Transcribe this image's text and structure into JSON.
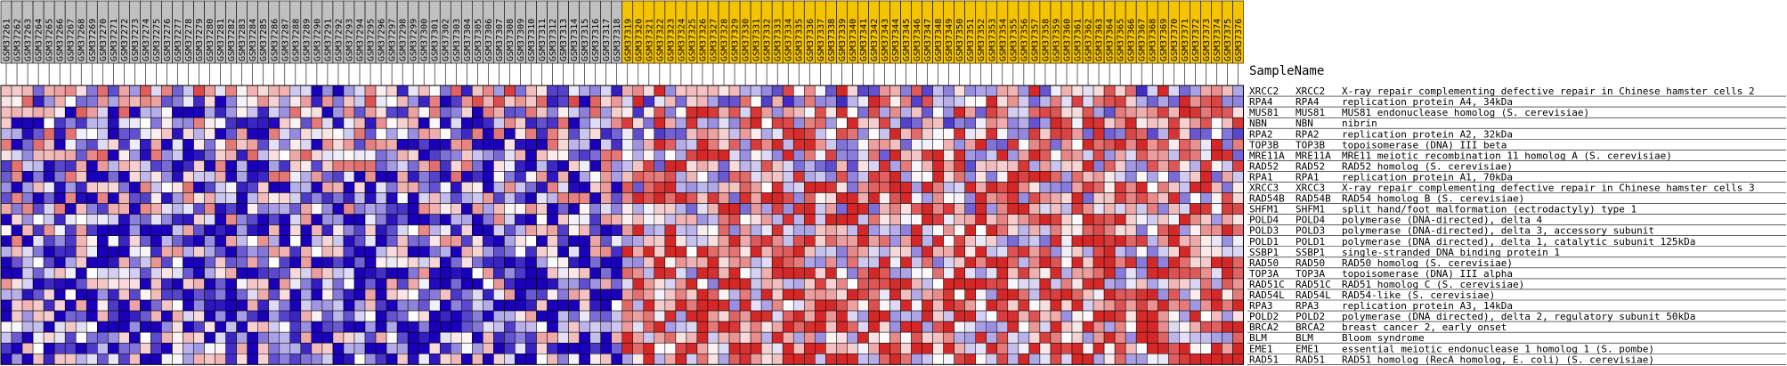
{
  "chart_data": {
    "type": "heatmap",
    "column_header_label": "SampleName",
    "columns": [
      "GSM37261",
      "GSM37262",
      "GSM37263",
      "GSM37264",
      "GSM37265",
      "GSM37266",
      "GSM37267",
      "GSM37268",
      "GSM37269",
      "GSM37270",
      "GSM37271",
      "GSM37272",
      "GSM37273",
      "GSM37274",
      "GSM37275",
      "GSM37276",
      "GSM37277",
      "GSM37278",
      "GSM37279",
      "GSM37280",
      "GSM37281",
      "GSM37282",
      "GSM37283",
      "GSM37284",
      "GSM37285",
      "GSM37286",
      "GSM37287",
      "GSM37288",
      "GSM37289",
      "GSM37290",
      "GSM37291",
      "GSM37292",
      "GSM37293",
      "GSM37294",
      "GSM37295",
      "GSM37296",
      "GSM37297",
      "GSM37298",
      "GSM37299",
      "GSM37300",
      "GSM37301",
      "GSM37302",
      "GSM37303",
      "GSM37304",
      "GSM37305",
      "GSM37306",
      "GSM37307",
      "GSM37308",
      "GSM37309",
      "GSM37310",
      "GSM37311",
      "GSM37312",
      "GSM37313",
      "GSM37314",
      "GSM37315",
      "GSM37316",
      "GSM37317",
      "GSM37318",
      "GSM37319",
      "GSM37320",
      "GSM37321",
      "GSM37322",
      "GSM37323",
      "GSM37324",
      "GSM37325",
      "GSM37326",
      "GSM37327",
      "GSM37328",
      "GSM37329",
      "GSM37330",
      "GSM37331",
      "GSM37332",
      "GSM37333",
      "GSM37334",
      "GSM37335",
      "GSM37336",
      "GSM37337",
      "GSM37338",
      "GSM37339",
      "GSM37340",
      "GSM37341",
      "GSM37342",
      "GSM37343",
      "GSM37344",
      "GSM37345",
      "GSM37346",
      "GSM37347",
      "GSM37348",
      "GSM37349",
      "GSM37350",
      "GSM37351",
      "GSM37352",
      "GSM37353",
      "GSM37354",
      "GSM37355",
      "GSM37356",
      "GSM37357",
      "GSM37358",
      "GSM37359",
      "GSM37360",
      "GSM37361",
      "GSM37362",
      "GSM37363",
      "GSM37364",
      "GSM37365",
      "GSM37366",
      "GSM37367",
      "GSM37368",
      "GSM37369",
      "GSM37370",
      "GSM37371",
      "GSM37372",
      "GSM37373",
      "GSM37374",
      "GSM37375",
      "GSM37376"
    ],
    "highlight_start_index": 58,
    "colors": {
      "group1_header": "#c0c0c0",
      "group2_header": "#f5c400",
      "high": "#d40000",
      "mid": "#ffffff",
      "low": "#1a00b8",
      "grid": "#000000"
    },
    "rows": [
      {
        "id": "XRCC2",
        "symbol": "XRCC2",
        "description": "X-ray repair complementing defective repair in Chinese hamster cells 2"
      },
      {
        "id": "RPA4",
        "symbol": "RPA4",
        "description": "replication protein A4, 34kDa"
      },
      {
        "id": "MUS81",
        "symbol": "MUS81",
        "description": "MUS81 endonuclease homolog (S. cerevisiae)"
      },
      {
        "id": "NBN",
        "symbol": "NBN",
        "description": "nibrin"
      },
      {
        "id": "RPA2",
        "symbol": "RPA2",
        "description": "replication protein A2, 32kDa"
      },
      {
        "id": "TOP3B",
        "symbol": "TOP3B",
        "description": "topoisomerase (DNA) III beta"
      },
      {
        "id": "MRE11A",
        "symbol": "MRE11A",
        "description": "MRE11 meiotic recombination 11 homolog A (S. cerevisiae)"
      },
      {
        "id": "RAD52",
        "symbol": "RAD52",
        "description": "RAD52 homolog (S. cerevisiae)"
      },
      {
        "id": "RPA1",
        "symbol": "RPA1",
        "description": "replication protein A1, 70kDa"
      },
      {
        "id": "XRCC3",
        "symbol": "XRCC3",
        "description": "X-ray repair complementing defective repair in Chinese hamster cells 3"
      },
      {
        "id": "RAD54B",
        "symbol": "RAD54B",
        "description": "RAD54 homolog B (S. cerevisiae)"
      },
      {
        "id": "SHFM1",
        "symbol": "SHFM1",
        "description": "split hand/foot malformation (ectrodactyly) type 1"
      },
      {
        "id": "POLD4",
        "symbol": "POLD4",
        "description": "polymerase (DNA-directed), delta 4"
      },
      {
        "id": "POLD3",
        "symbol": "POLD3",
        "description": "polymerase (DNA-directed), delta 3, accessory subunit"
      },
      {
        "id": "POLD1",
        "symbol": "POLD1",
        "description": "polymerase (DNA directed), delta 1, catalytic subunit 125kDa"
      },
      {
        "id": "SSBP1",
        "symbol": "SSBP1",
        "description": "single-stranded DNA binding protein 1"
      },
      {
        "id": "RAD50",
        "symbol": "RAD50",
        "description": "RAD50 homolog (S. cerevisiae)"
      },
      {
        "id": "TOP3A",
        "symbol": "TOP3A",
        "description": "topoisomerase (DNA) III alpha"
      },
      {
        "id": "RAD51C",
        "symbol": "RAD51C",
        "description": "RAD51 homolog C (S. cerevisiae)"
      },
      {
        "id": "RAD54L",
        "symbol": "RAD54L",
        "description": "RAD54-like (S. cerevisiae)"
      },
      {
        "id": "RPA3",
        "symbol": "RPA3",
        "description": "replication protein A3, 14kDa"
      },
      {
        "id": "POLD2",
        "symbol": "POLD2",
        "description": "polymerase (DNA directed), delta 2, regulatory subunit 50kDa"
      },
      {
        "id": "BRCA2",
        "symbol": "BRCA2",
        "description": "breast cancer 2, early onset"
      },
      {
        "id": "BLM",
        "symbol": "BLM",
        "description": "Bloom syndrome"
      },
      {
        "id": "EME1",
        "symbol": "EME1",
        "description": "essential meiotic endonuclease 1 homolog 1 (S. pombe)"
      },
      {
        "id": "RAD51",
        "symbol": "RAD51",
        "description": "RAD51 homolog (RecA homolog, E. coli) (S. cerevisiae)"
      }
    ],
    "values": "",
    "bias": [
      0.0,
      0.05,
      0.1,
      0.1,
      0.15,
      0.15,
      0.2,
      0.2,
      0.25,
      0.25,
      0.3,
      0.3,
      0.35,
      0.35,
      0.35,
      0.4,
      0.4,
      0.4,
      0.45,
      0.45,
      0.45,
      0.5,
      0.5,
      0.5,
      0.55,
      0.55
    ]
  }
}
